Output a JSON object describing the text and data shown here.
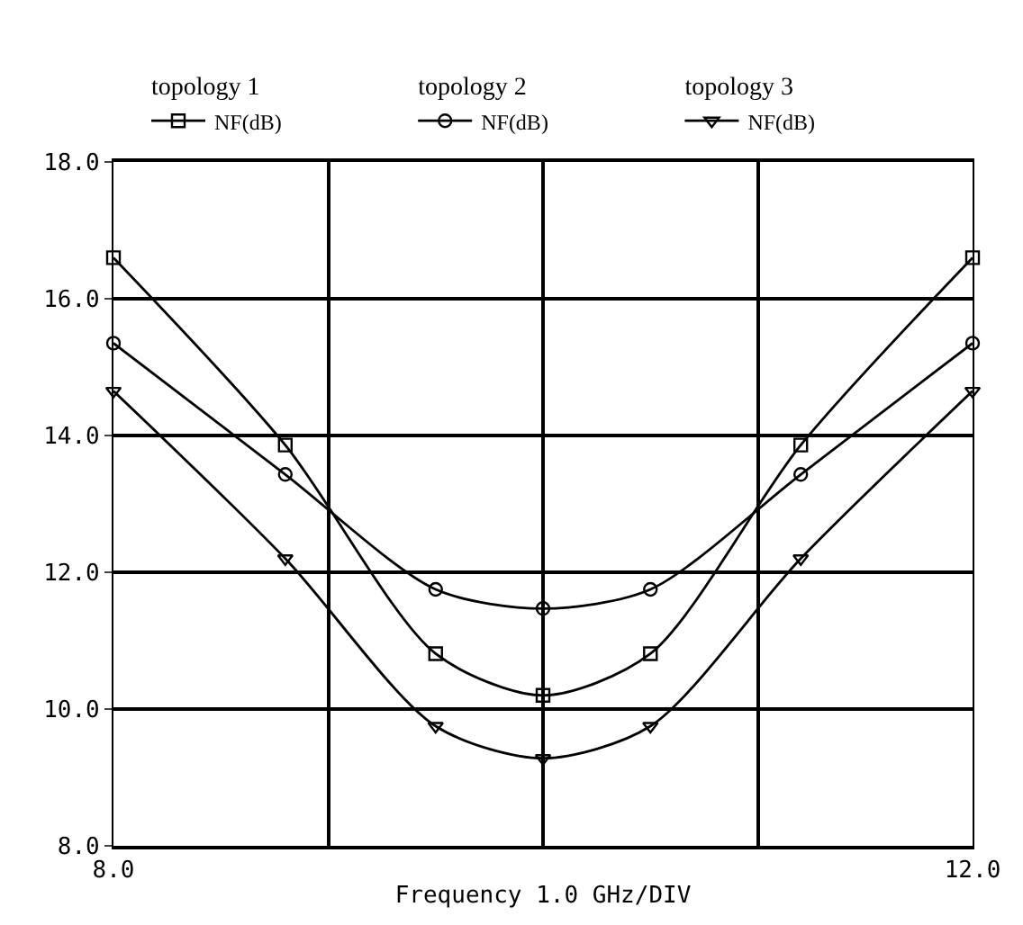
{
  "chart_data": {
    "type": "line",
    "xlabel": "Frequency 1.0 GHz/DIV",
    "annotations": [
      "topology 1",
      "topology 2",
      "topology 3"
    ],
    "x": [
      8.0,
      8.8,
      9.5,
      10.0,
      10.5,
      11.2,
      12.0
    ],
    "series": [
      {
        "name": "NF(dB)",
        "color": "#000000",
        "marker": "square",
        "values": [
          16.6,
          13.86,
          10.81,
          10.2,
          10.81,
          13.86,
          16.6
        ]
      },
      {
        "name": "NF(dB)",
        "color": "#000000",
        "marker": "circle",
        "values": [
          15.35,
          13.43,
          11.75,
          11.47,
          11.75,
          13.43,
          15.35
        ]
      },
      {
        "name": "NF(dB)",
        "color": "#000000",
        "marker": "triangle",
        "values": [
          14.65,
          12.2,
          9.75,
          9.28,
          9.75,
          12.2,
          14.65
        ]
      }
    ],
    "xlim": [
      8.0,
      12.0
    ],
    "xticks": [
      {
        "value": 8,
        "label": "8.0"
      },
      {
        "value": 9,
        "label": null
      },
      {
        "value": 10,
        "label": null
      },
      {
        "value": 11,
        "label": null
      },
      {
        "value": 12,
        "label": "12.0"
      }
    ],
    "ylim": [
      8.0,
      18.0
    ],
    "yticks": [
      {
        "value": 8,
        "label": "8.0"
      },
      {
        "value": 10,
        "label": "10.0"
      },
      {
        "value": 12,
        "label": "12.0"
      },
      {
        "value": 14,
        "label": "14.0"
      },
      {
        "value": 16,
        "label": "16.0"
      },
      {
        "value": 18,
        "label": "18.0"
      }
    ],
    "grid": true,
    "legend": "top",
    "line_style": "solid"
  }
}
